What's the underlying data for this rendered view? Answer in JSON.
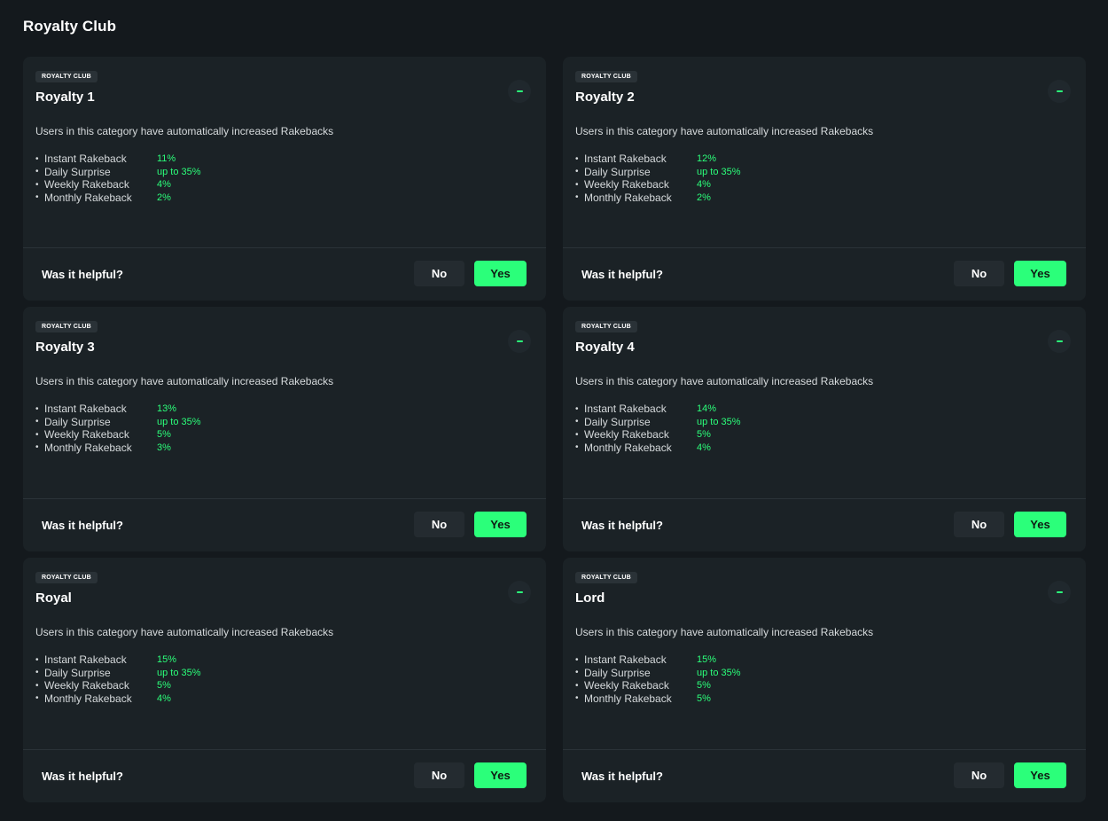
{
  "page_title": "Royalty Club",
  "colors": {
    "background": "#14191d",
    "card": "#1b2226",
    "accent": "#2bff7a"
  },
  "cards": [
    {
      "badge": "ROYALTY CLUB",
      "title": "Royalty 1",
      "toggle_icon": "minus-icon",
      "description": "Users in this category have automatically increased Rakebacks",
      "rakebacks": [
        {
          "label": "Instant Rakeback",
          "value": "11%"
        },
        {
          "label": "Daily Surprise",
          "value": "up to 35%"
        },
        {
          "label": "Weekly Rakeback",
          "value": "4%"
        },
        {
          "label": "Monthly Rakeback",
          "value": "2%"
        }
      ],
      "question": "Was it helpful?",
      "no_label": "No",
      "yes_label": "Yes"
    },
    {
      "badge": "ROYALTY CLUB",
      "title": "Royalty 2",
      "toggle_icon": "minus-icon",
      "description": "Users in this category have automatically increased Rakebacks",
      "rakebacks": [
        {
          "label": "Instant Rakeback",
          "value": "12%"
        },
        {
          "label": "Daily Surprise",
          "value": "up to 35%"
        },
        {
          "label": "Weekly Rakeback",
          "value": "4%"
        },
        {
          "label": "Monthly Rakeback",
          "value": "2%"
        }
      ],
      "question": "Was it helpful?",
      "no_label": "No",
      "yes_label": "Yes"
    },
    {
      "badge": "ROYALTY CLUB",
      "title": "Royalty 3",
      "toggle_icon": "minus-icon",
      "description": "Users in this category have automatically increased Rakebacks",
      "rakebacks": [
        {
          "label": "Instant Rakeback",
          "value": "13%"
        },
        {
          "label": "Daily Surprise",
          "value": "up to 35%"
        },
        {
          "label": "Weekly Rakeback",
          "value": "5%"
        },
        {
          "label": "Monthly Rakeback",
          "value": "3%"
        }
      ],
      "question": "Was it helpful?",
      "no_label": "No",
      "yes_label": "Yes"
    },
    {
      "badge": "ROYALTY CLUB",
      "title": "Royalty 4",
      "toggle_icon": "minus-icon",
      "description": "Users in this category have automatically increased Rakebacks",
      "rakebacks": [
        {
          "label": "Instant Rakeback",
          "value": "14%"
        },
        {
          "label": "Daily Surprise",
          "value": "up to 35%"
        },
        {
          "label": "Weekly Rakeback",
          "value": "5%"
        },
        {
          "label": "Monthly Rakeback",
          "value": "4%"
        }
      ],
      "question": "Was it helpful?",
      "no_label": "No",
      "yes_label": "Yes"
    },
    {
      "badge": "ROYALTY CLUB",
      "title": "Royal",
      "toggle_icon": "minus-icon",
      "description": "Users in this category have automatically increased Rakebacks",
      "rakebacks": [
        {
          "label": "Instant Rakeback",
          "value": "15%"
        },
        {
          "label": "Daily Surprise",
          "value": "up to 35%"
        },
        {
          "label": "Weekly Rakeback",
          "value": "5%"
        },
        {
          "label": "Monthly Rakeback",
          "value": "4%"
        }
      ],
      "question": "Was it helpful?",
      "no_label": "No",
      "yes_label": "Yes"
    },
    {
      "badge": "ROYALTY CLUB",
      "title": "Lord",
      "toggle_icon": "minus-icon",
      "description": "Users in this category have automatically increased Rakebacks",
      "rakebacks": [
        {
          "label": "Instant Rakeback",
          "value": "15%"
        },
        {
          "label": "Daily Surprise",
          "value": "up to 35%"
        },
        {
          "label": "Weekly Rakeback",
          "value": "5%"
        },
        {
          "label": "Monthly Rakeback",
          "value": "5%"
        }
      ],
      "question": "Was it helpful?",
      "no_label": "No",
      "yes_label": "Yes"
    }
  ]
}
